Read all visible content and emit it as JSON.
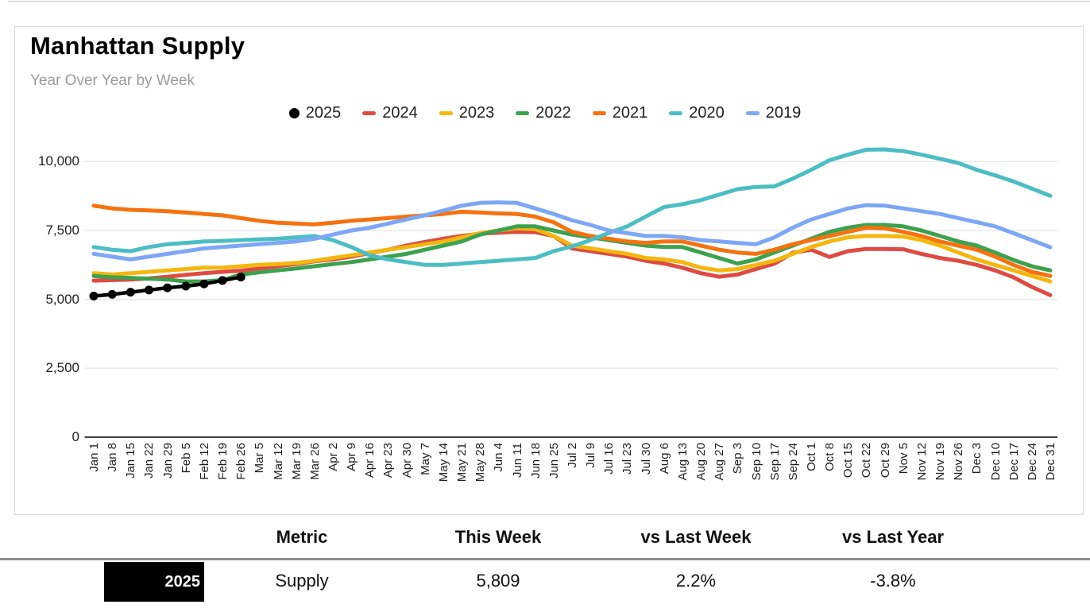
{
  "header": {
    "title": "Manhattan Supply",
    "subtitle": "Year Over Year by Week"
  },
  "chart_data": {
    "type": "line",
    "title": "Manhattan Supply",
    "subtitle": "Year Over Year by Week",
    "legend_position": "top",
    "grid": true,
    "ylim": [
      0,
      10000
    ],
    "y_ticks": [
      {
        "label": "0",
        "value": 0
      },
      {
        "label": "2,500",
        "value": 2500
      },
      {
        "label": "5,000",
        "value": 5000
      },
      {
        "label": "7,500",
        "value": 7500
      },
      {
        "label": "10,000",
        "value": 10000
      }
    ],
    "x_labels": [
      "Jan 1",
      "Jan 8",
      "Jan 15",
      "Jan 22",
      "Jan 29",
      "Feb 5",
      "Feb 12",
      "Feb 19",
      "Feb 26",
      "Mar 5",
      "Mar 12",
      "Mar 19",
      "Mar 26",
      "Apr 2",
      "Apr 9",
      "Apr 16",
      "Apr 23",
      "Apr 30",
      "May 7",
      "May 14",
      "May 21",
      "May 28",
      "Jun 4",
      "Jun 11",
      "Jun 18",
      "Jun 25",
      "Jul 2",
      "Jul 9",
      "Jul 16",
      "Jul 23",
      "Jul 30",
      "Aug 6",
      "Aug 13",
      "Aug 20",
      "Aug 27",
      "Sep 3",
      "Sep 10",
      "Sep 17",
      "Sep 24",
      "Oct 1",
      "Oct 8",
      "Oct 15",
      "Oct 22",
      "Oct 29",
      "Nov 5",
      "Nov 12",
      "Nov 19",
      "Nov 26",
      "Dec 3",
      "Dec 10",
      "Dec 17",
      "Dec 24",
      "Dec 31"
    ],
    "series": [
      {
        "name": "2025",
        "color": "#000000",
        "marker": "circle",
        "values": [
          5120,
          5180,
          5260,
          5340,
          5420,
          5480,
          5560,
          5684,
          5809
        ]
      },
      {
        "name": "2024",
        "color": "#dd4b43",
        "marker": "dash",
        "values": [
          5680,
          5700,
          5720,
          5760,
          5820,
          5890,
          5950,
          6000,
          6040,
          6120,
          6200,
          6280,
          6380,
          6450,
          6550,
          6680,
          6800,
          6950,
          7080,
          7200,
          7300,
          7380,
          7420,
          7450,
          7440,
          7300,
          6850,
          6750,
          6650,
          6550,
          6400,
          6300,
          6150,
          5950,
          5820,
          5900,
          6100,
          6290,
          6690,
          6800,
          6540,
          6750,
          6830,
          6830,
          6820,
          6650,
          6500,
          6400,
          6250,
          6050,
          5800,
          5450,
          5150
        ]
      },
      {
        "name": "2023",
        "color": "#f3b710",
        "marker": "dash",
        "values": [
          5950,
          5900,
          5950,
          6000,
          6050,
          6100,
          6150,
          6150,
          6200,
          6250,
          6280,
          6320,
          6400,
          6500,
          6600,
          6700,
          6800,
          6900,
          7000,
          7100,
          7250,
          7400,
          7500,
          7580,
          7550,
          7300,
          6950,
          6850,
          6750,
          6650,
          6500,
          6450,
          6350,
          6150,
          6050,
          6100,
          6250,
          6400,
          6650,
          6900,
          7100,
          7250,
          7300,
          7300,
          7280,
          7150,
          6950,
          6700,
          6450,
          6250,
          6050,
          5850,
          5650
        ]
      },
      {
        "name": "2022",
        "color": "#3da14f",
        "marker": "dash",
        "values": [
          5850,
          5800,
          5780,
          5750,
          5720,
          5650,
          5650,
          5700,
          5900,
          5980,
          6050,
          6120,
          6200,
          6280,
          6350,
          6450,
          6550,
          6650,
          6800,
          6950,
          7100,
          7350,
          7500,
          7650,
          7650,
          7500,
          7350,
          7250,
          7150,
          7050,
          6950,
          6900,
          6900,
          6700,
          6500,
          6300,
          6450,
          6700,
          6950,
          7200,
          7450,
          7600,
          7700,
          7700,
          7650,
          7500,
          7300,
          7100,
          6950,
          6700,
          6430,
          6200,
          6050
        ]
      },
      {
        "name": "2021",
        "color": "#f57210",
        "marker": "dash",
        "values": [
          8400,
          8300,
          8250,
          8230,
          8200,
          8150,
          8100,
          8050,
          7950,
          7850,
          7780,
          7750,
          7720,
          7780,
          7850,
          7900,
          7950,
          8000,
          8050,
          8100,
          8180,
          8150,
          8120,
          8100,
          8000,
          7800,
          7450,
          7300,
          7200,
          7100,
          7050,
          7100,
          7100,
          6950,
          6800,
          6700,
          6650,
          6800,
          7000,
          7150,
          7300,
          7450,
          7600,
          7580,
          7450,
          7300,
          7100,
          6950,
          6800,
          6550,
          6250,
          6000,
          5850
        ]
      },
      {
        "name": "2020",
        "color": "#4dbdc4",
        "marker": "dash",
        "values": [
          6900,
          6800,
          6750,
          6900,
          7000,
          7050,
          7100,
          7120,
          7150,
          7180,
          7200,
          7250,
          7300,
          7150,
          6900,
          6600,
          6450,
          6350,
          6250,
          6250,
          6300,
          6350,
          6400,
          6450,
          6500,
          6750,
          6920,
          7150,
          7410,
          7650,
          8000,
          8350,
          8450,
          8600,
          8800,
          9000,
          9080,
          9100,
          9380,
          9700,
          10050,
          10250,
          10430,
          10440,
          10380,
          10250,
          10100,
          9950,
          9700,
          9500,
          9280,
          9020,
          8760
        ]
      },
      {
        "name": "2019",
        "color": "#7da7f4",
        "marker": "dash",
        "values": [
          6650,
          6550,
          6450,
          6550,
          6650,
          6750,
          6850,
          6900,
          6950,
          7000,
          7050,
          7100,
          7200,
          7350,
          7500,
          7600,
          7750,
          7900,
          8050,
          8220,
          8400,
          8500,
          8520,
          8500,
          8300,
          8100,
          7870,
          7700,
          7500,
          7400,
          7300,
          7300,
          7250,
          7150,
          7100,
          7050,
          7000,
          7250,
          7600,
          7900,
          8100,
          8300,
          8420,
          8400,
          8300,
          8200,
          8100,
          7950,
          7800,
          7650,
          7400,
          7150,
          6890
        ]
      }
    ]
  },
  "table": {
    "headers": {
      "metric": "Metric",
      "this_week": "This Week",
      "vs_last_week": "vs Last Week",
      "vs_last_year": "vs Last Year"
    },
    "row": {
      "year": "2025",
      "metric": "Supply",
      "this_week": "5,809",
      "vs_last_week": "2.2%",
      "vs_last_year": "-3.8%"
    }
  }
}
